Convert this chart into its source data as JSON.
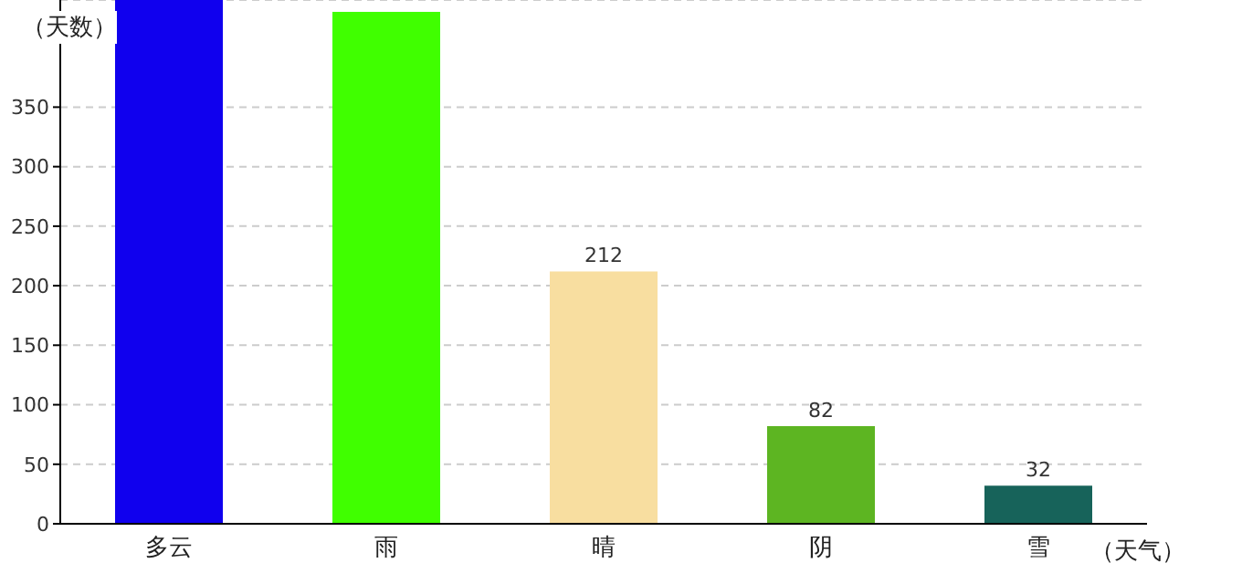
{
  "chart_data": {
    "type": "bar",
    "xlabel": "（天气）",
    "ylabel": "（天数）",
    "categories": [
      "多云",
      "雨",
      "晴",
      "阴",
      "雪"
    ],
    "values": [
      440,
      430,
      212,
      82,
      32
    ],
    "colors": [
      "#1000ee",
      "#40ff00",
      "#f8dea0",
      "#5db522",
      "#17635a"
    ],
    "value_labels": [
      null,
      null,
      "212",
      "82",
      "32"
    ],
    "ylim": [
      0,
      440
    ],
    "yticks": [
      0,
      50,
      100,
      150,
      200,
      250,
      300,
      350
    ],
    "grid": "y"
  }
}
